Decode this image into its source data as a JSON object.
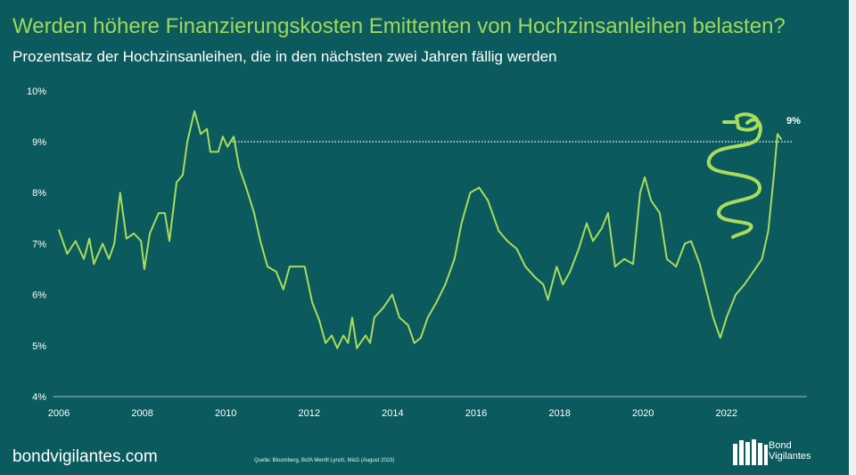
{
  "title": "Werden höhere Finanzierungskosten Emittenten von Hochzinsanleihen belasten?",
  "subtitle": "Prozentsatz der Hochzinsanleihen, die in den nächsten zwei Jahren fällig werden",
  "footer": {
    "site": "bondvigilantes.com",
    "source": "Quelle: Bloomberg, BofA Merrill Lynch, M&G (August 2023)",
    "logo_text": "Bond Vigilantes"
  },
  "colors": {
    "background": "#0b5a5d",
    "line": "#a8dc5c",
    "title": "#9fd85a",
    "reference": "#ffffff"
  },
  "chart_data": {
    "type": "line",
    "title": "",
    "xlabel": "",
    "ylabel": "",
    "xlim": [
      2006,
      2023.9
    ],
    "ylim": [
      4,
      10
    ],
    "x_ticks": [
      "2006",
      "2008",
      "2010",
      "2012",
      "2014",
      "2016",
      "2018",
      "2020",
      "2022"
    ],
    "y_ticks": [
      "4%",
      "5%",
      "6%",
      "7%",
      "8%",
      "9%",
      "10%"
    ],
    "grid": false,
    "reference_line": {
      "y": 9,
      "style": "dotted",
      "label": "9%"
    },
    "annotation_icon": "snake-icon",
    "series": [
      {
        "x": [
          2006.0,
          2006.2,
          2006.4,
          2006.6,
          2006.73,
          2006.84,
          2007.05,
          2007.2,
          2007.33,
          2007.47,
          2007.62,
          2007.8,
          2007.97,
          2008.05,
          2008.18,
          2008.39,
          2008.54,
          2008.65,
          2008.82,
          2008.97,
          2009.08,
          2009.25,
          2009.4,
          2009.55,
          2009.63,
          2009.82,
          2009.93,
          2010.04,
          2010.19,
          2010.32,
          2010.49,
          2010.68,
          2010.83,
          2011.0,
          2011.21,
          2011.38,
          2011.53,
          2011.74,
          2011.89,
          2012.07,
          2012.24,
          2012.39,
          2012.54,
          2012.67,
          2012.82,
          2012.93,
          2013.03,
          2013.14,
          2013.35,
          2013.46,
          2013.56,
          2013.78,
          2013.99,
          2014.16,
          2014.37,
          2014.52,
          2014.67,
          2014.84,
          2015.05,
          2015.26,
          2015.48,
          2015.65,
          2015.86,
          2016.07,
          2016.28,
          2016.54,
          2016.75,
          2016.97,
          2017.18,
          2017.4,
          2017.61,
          2017.72,
          2017.93,
          2018.08,
          2018.25,
          2018.46,
          2018.65,
          2018.8,
          2019.01,
          2019.16,
          2019.33,
          2019.55,
          2019.76,
          2019.93,
          2020.04,
          2020.19,
          2020.4,
          2020.57,
          2020.79,
          2021.0,
          2021.15,
          2021.36,
          2021.51,
          2021.68,
          2021.85,
          2022.0,
          2022.22,
          2022.43,
          2022.64,
          2022.85,
          2023.0,
          2023.13,
          2023.22,
          2023.31
        ],
        "y": [
          7.27,
          6.8,
          7.05,
          6.7,
          7.1,
          6.6,
          7.0,
          6.7,
          7.0,
          8.0,
          7.1,
          7.2,
          7.05,
          6.5,
          7.2,
          7.6,
          7.6,
          7.05,
          8.2,
          8.35,
          9.0,
          9.6,
          9.15,
          9.25,
          8.8,
          8.8,
          9.1,
          8.9,
          9.1,
          8.5,
          8.1,
          7.6,
          7.05,
          6.55,
          6.45,
          6.1,
          6.55,
          6.55,
          6.55,
          5.85,
          5.5,
          5.05,
          5.2,
          4.95,
          5.2,
          5.05,
          5.55,
          4.95,
          5.2,
          5.05,
          5.55,
          5.75,
          6.0,
          5.55,
          5.4,
          5.05,
          5.15,
          5.55,
          5.85,
          6.2,
          6.7,
          7.4,
          8.0,
          8.1,
          7.85,
          7.25,
          7.05,
          6.9,
          6.55,
          6.35,
          6.2,
          5.9,
          6.55,
          6.2,
          6.45,
          6.9,
          7.4,
          7.05,
          7.3,
          7.6,
          6.55,
          6.7,
          6.6,
          8.0,
          8.3,
          7.85,
          7.6,
          6.7,
          6.55,
          7.0,
          7.05,
          6.6,
          6.1,
          5.55,
          5.15,
          5.55,
          6.0,
          6.2,
          6.45,
          6.7,
          7.25,
          8.3,
          9.15,
          9.05
        ]
      }
    ]
  }
}
